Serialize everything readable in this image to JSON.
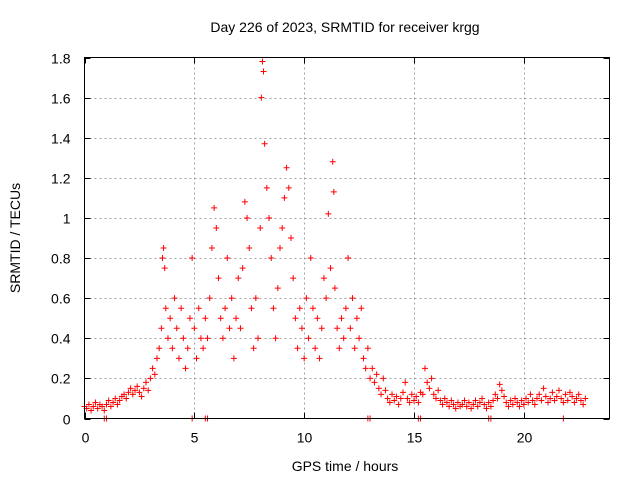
{
  "chart_data": {
    "type": "scatter",
    "title": "Day 226 of 2023, SRMTID for receiver krgg",
    "xlabel": "GPS time / hours",
    "ylabel": "SRMTID / TECUs",
    "xlim": [
      0,
      23.9
    ],
    "ylim": [
      0,
      1.8
    ],
    "x_ticks": [
      0,
      5,
      10,
      15,
      20
    ],
    "x_tick_labels": [
      "0",
      "5",
      "10",
      "15",
      "20"
    ],
    "y_ticks": [
      0,
      0.2,
      0.4,
      0.6,
      0.8,
      1,
      1.2,
      1.4,
      1.6,
      1.8
    ],
    "y_tick_labels": [
      "0",
      "0.2",
      "0.4",
      "0.6",
      "0.8",
      "1",
      "1.2",
      "1.4",
      "1.6",
      "1.8"
    ],
    "grid": true,
    "marker": "plus",
    "marker_color": "#ff0000",
    "series": [
      {
        "name": "SRMTID",
        "points": [
          [
            0.0,
            0.06
          ],
          [
            0.1,
            0.05
          ],
          [
            0.2,
            0.07
          ],
          [
            0.3,
            0.04
          ],
          [
            0.4,
            0.06
          ],
          [
            0.5,
            0.08
          ],
          [
            0.6,
            0.05
          ],
          [
            0.7,
            0.07
          ],
          [
            0.8,
            0.06
          ],
          [
            0.9,
            0.04
          ],
          [
            1.0,
            0.07
          ],
          [
            1.1,
            0.09
          ],
          [
            1.2,
            0.06
          ],
          [
            1.3,
            0.08
          ],
          [
            1.4,
            0.1
          ],
          [
            1.5,
            0.07
          ],
          [
            1.6,
            0.09
          ],
          [
            1.7,
            0.11
          ],
          [
            1.8,
            0.12
          ],
          [
            1.9,
            0.1
          ],
          [
            2.0,
            0.13
          ],
          [
            2.1,
            0.15
          ],
          [
            2.2,
            0.12
          ],
          [
            2.3,
            0.14
          ],
          [
            2.4,
            0.16
          ],
          [
            2.5,
            0.13
          ],
          [
            2.6,
            0.11
          ],
          [
            2.7,
            0.15
          ],
          [
            2.8,
            0.18
          ],
          [
            2.9,
            0.14
          ],
          [
            3.0,
            0.2
          ],
          [
            3.1,
            0.25
          ],
          [
            3.2,
            0.22
          ],
          [
            3.3,
            0.3
          ],
          [
            3.4,
            0.35
          ],
          [
            3.5,
            0.45
          ],
          [
            3.55,
            0.8
          ],
          [
            3.6,
            0.85
          ],
          [
            3.65,
            0.75
          ],
          [
            3.7,
            0.55
          ],
          [
            3.8,
            0.4
          ],
          [
            3.9,
            0.5
          ],
          [
            4.0,
            0.35
          ],
          [
            4.1,
            0.6
          ],
          [
            4.2,
            0.45
          ],
          [
            4.3,
            0.3
          ],
          [
            4.4,
            0.55
          ],
          [
            4.5,
            0.4
          ],
          [
            4.6,
            0.25
          ],
          [
            4.7,
            0.35
          ],
          [
            4.8,
            0.5
          ],
          [
            4.9,
            0.8
          ],
          [
            5.0,
            0.45
          ],
          [
            5.1,
            0.3
          ],
          [
            5.2,
            0.55
          ],
          [
            5.3,
            0.4
          ],
          [
            5.4,
            0.35
          ],
          [
            5.5,
            0.5
          ],
          [
            5.6,
            0.4
          ],
          [
            5.7,
            0.6
          ],
          [
            5.8,
            0.85
          ],
          [
            5.9,
            1.05
          ],
          [
            6.0,
            0.95
          ],
          [
            6.1,
            0.7
          ],
          [
            6.2,
            0.5
          ],
          [
            6.3,
            0.4
          ],
          [
            6.4,
            0.55
          ],
          [
            6.5,
            0.8
          ],
          [
            6.6,
            0.45
          ],
          [
            6.7,
            0.6
          ],
          [
            6.8,
            0.3
          ],
          [
            6.9,
            0.5
          ],
          [
            7.0,
            0.7
          ],
          [
            7.1,
            0.45
          ],
          [
            7.2,
            0.75
          ],
          [
            7.3,
            1.08
          ],
          [
            7.4,
            1.0
          ],
          [
            7.5,
            0.85
          ],
          [
            7.6,
            0.55
          ],
          [
            7.7,
            0.35
          ],
          [
            7.8,
            0.6
          ],
          [
            7.9,
            0.4
          ],
          [
            8.0,
            0.95
          ],
          [
            8.05,
            1.6
          ],
          [
            8.1,
            1.78
          ],
          [
            8.15,
            1.73
          ],
          [
            8.2,
            1.37
          ],
          [
            8.3,
            1.15
          ],
          [
            8.4,
            1.0
          ],
          [
            8.5,
            0.8
          ],
          [
            8.6,
            0.55
          ],
          [
            8.7,
            0.4
          ],
          [
            8.8,
            0.65
          ],
          [
            8.9,
            0.85
          ],
          [
            9.0,
            0.95
          ],
          [
            9.1,
            1.1
          ],
          [
            9.2,
            1.25
          ],
          [
            9.3,
            1.15
          ],
          [
            9.4,
            0.9
          ],
          [
            9.5,
            0.7
          ],
          [
            9.6,
            0.5
          ],
          [
            9.7,
            0.35
          ],
          [
            9.8,
            0.55
          ],
          [
            9.9,
            0.45
          ],
          [
            10.0,
            0.3
          ],
          [
            10.1,
            0.6
          ],
          [
            10.2,
            0.4
          ],
          [
            10.3,
            0.8
          ],
          [
            10.4,
            0.55
          ],
          [
            10.5,
            0.35
          ],
          [
            10.6,
            0.5
          ],
          [
            10.7,
            0.3
          ],
          [
            10.8,
            0.45
          ],
          [
            10.9,
            0.7
          ],
          [
            11.0,
            0.6
          ],
          [
            11.1,
            1.02
          ],
          [
            11.2,
            0.75
          ],
          [
            11.3,
            1.28
          ],
          [
            11.35,
            1.13
          ],
          [
            11.4,
            0.65
          ],
          [
            11.5,
            0.45
          ],
          [
            11.6,
            0.35
          ],
          [
            11.7,
            0.5
          ],
          [
            11.8,
            0.4
          ],
          [
            11.9,
            0.55
          ],
          [
            12.0,
            0.8
          ],
          [
            12.1,
            0.45
          ],
          [
            12.2,
            0.6
          ],
          [
            12.3,
            0.35
          ],
          [
            12.4,
            0.5
          ],
          [
            12.5,
            0.4
          ],
          [
            12.6,
            0.55
          ],
          [
            12.7,
            0.3
          ],
          [
            12.8,
            0.25
          ],
          [
            12.9,
            0.35
          ],
          [
            13.0,
            0.2
          ],
          [
            13.1,
            0.25
          ],
          [
            13.2,
            0.18
          ],
          [
            13.3,
            0.22
          ],
          [
            13.4,
            0.15
          ],
          [
            13.5,
            0.12
          ],
          [
            13.6,
            0.2
          ],
          [
            13.7,
            0.14
          ],
          [
            13.8,
            0.1
          ],
          [
            13.9,
            0.08
          ],
          [
            14.0,
            0.12
          ],
          [
            14.1,
            0.09
          ],
          [
            14.2,
            0.11
          ],
          [
            14.3,
            0.07
          ],
          [
            14.4,
            0.1
          ],
          [
            14.5,
            0.13
          ],
          [
            14.6,
            0.18
          ],
          [
            14.7,
            0.1
          ],
          [
            14.8,
            0.08
          ],
          [
            14.9,
            0.12
          ],
          [
            15.0,
            0.09
          ],
          [
            15.1,
            0.11
          ],
          [
            15.2,
            0.08
          ],
          [
            15.3,
            0.13
          ],
          [
            15.4,
            0.12
          ],
          [
            15.5,
            0.25
          ],
          [
            15.6,
            0.18
          ],
          [
            15.7,
            0.15
          ],
          [
            15.8,
            0.2
          ],
          [
            15.9,
            0.12
          ],
          [
            16.0,
            0.1
          ],
          [
            16.1,
            0.14
          ],
          [
            16.2,
            0.09
          ],
          [
            16.3,
            0.07
          ],
          [
            16.4,
            0.1
          ],
          [
            16.5,
            0.08
          ],
          [
            16.6,
            0.06
          ],
          [
            16.7,
            0.09
          ],
          [
            16.8,
            0.07
          ],
          [
            16.9,
            0.05
          ],
          [
            17.0,
            0.08
          ],
          [
            17.1,
            0.06
          ],
          [
            17.2,
            0.07
          ],
          [
            17.3,
            0.09
          ],
          [
            17.4,
            0.06
          ],
          [
            17.5,
            0.08
          ],
          [
            17.6,
            0.05
          ],
          [
            17.7,
            0.07
          ],
          [
            17.8,
            0.09
          ],
          [
            17.9,
            0.06
          ],
          [
            18.0,
            0.08
          ],
          [
            18.1,
            0.1
          ],
          [
            18.2,
            0.07
          ],
          [
            18.3,
            0.05
          ],
          [
            18.4,
            0.08
          ],
          [
            18.5,
            0.06
          ],
          [
            18.6,
            0.09
          ],
          [
            18.7,
            0.12
          ],
          [
            18.8,
            0.1
          ],
          [
            18.9,
            0.17
          ],
          [
            19.0,
            0.14
          ],
          [
            19.1,
            0.11
          ],
          [
            19.2,
            0.08
          ],
          [
            19.3,
            0.06
          ],
          [
            19.4,
            0.09
          ],
          [
            19.5,
            0.07
          ],
          [
            19.6,
            0.1
          ],
          [
            19.7,
            0.08
          ],
          [
            19.8,
            0.06
          ],
          [
            19.9,
            0.09
          ],
          [
            20.0,
            0.07
          ],
          [
            20.1,
            0.1
          ],
          [
            20.2,
            0.08
          ],
          [
            20.3,
            0.12
          ],
          [
            20.4,
            0.09
          ],
          [
            20.5,
            0.07
          ],
          [
            20.6,
            0.1
          ],
          [
            20.7,
            0.12
          ],
          [
            20.8,
            0.09
          ],
          [
            20.9,
            0.15
          ],
          [
            21.0,
            0.11
          ],
          [
            21.1,
            0.08
          ],
          [
            21.2,
            0.1
          ],
          [
            21.3,
            0.13
          ],
          [
            21.4,
            0.09
          ],
          [
            21.5,
            0.11
          ],
          [
            21.6,
            0.14
          ],
          [
            21.7,
            0.1
          ],
          [
            21.8,
            0.08
          ],
          [
            21.9,
            0.12
          ],
          [
            22.0,
            0.09
          ],
          [
            22.1,
            0.13
          ],
          [
            22.2,
            0.11
          ],
          [
            22.3,
            0.08
          ],
          [
            22.4,
            0.1
          ],
          [
            22.5,
            0.12
          ],
          [
            22.6,
            0.09
          ],
          [
            22.7,
            0.07
          ],
          [
            22.8,
            0.1
          ],
          [
            0.9,
            0.0
          ],
          [
            1.0,
            0.0
          ],
          [
            4.9,
            0.0
          ],
          [
            5.5,
            0.0
          ],
          [
            5.6,
            0.0
          ],
          [
            12.9,
            0.0
          ],
          [
            13.0,
            0.0
          ],
          [
            15.2,
            0.0
          ],
          [
            15.3,
            0.0
          ],
          [
            18.4,
            0.0
          ],
          [
            18.5,
            0.0
          ],
          [
            21.8,
            0.0
          ]
        ]
      }
    ]
  }
}
